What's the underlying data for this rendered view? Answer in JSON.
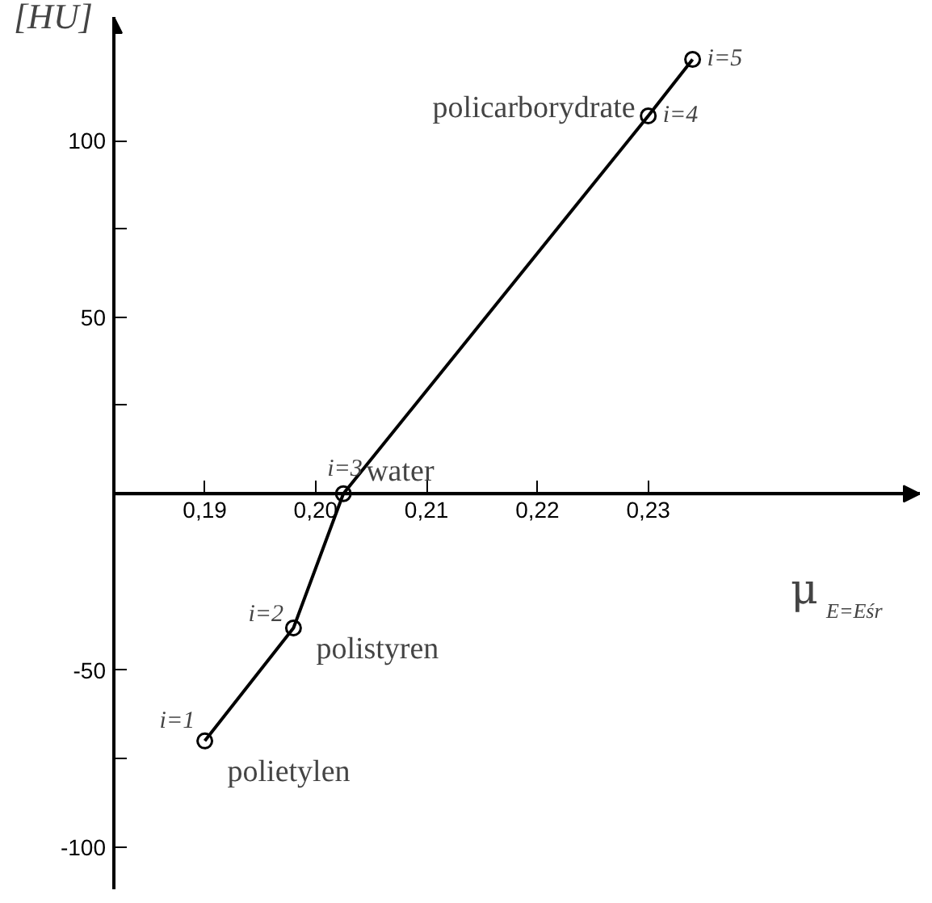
{
  "chart_data": {
    "type": "line",
    "xlabel": "μ$_{E=Eśr}$",
    "ylabel": "[HU]",
    "x": [
      0.19,
      0.198,
      0.2025,
      0.23,
      0.234
    ],
    "series": [
      {
        "color": "#000000",
        "values": [
          -70,
          -38,
          0,
          107,
          123
        ]
      }
    ],
    "marker": "circle",
    "line_style": "solid",
    "grid": false,
    "xlim": [
      0.1818,
      0.2545
    ],
    "ylim": [
      -112,
      135
    ],
    "xticks": [
      {
        "value": 0.19,
        "label": "0,19"
      },
      {
        "value": 0.2,
        "label": "0,20"
      },
      {
        "value": 0.21,
        "label": "0,21"
      },
      {
        "value": 0.22,
        "label": "0,22"
      },
      {
        "value": 0.23,
        "label": "0,23"
      }
    ],
    "yticks": [
      -100,
      {
        "value": -75,
        "label": null
      },
      -50,
      {
        "value": 25,
        "label": null
      },
      50,
      {
        "value": 75,
        "label": null
      },
      100
    ],
    "annotations": [
      {
        "text": "i=1",
        "x": 0.19,
        "y": -70
      },
      {
        "text": "polietylen",
        "x": 0.19,
        "y": -70
      },
      {
        "text": "i=2",
        "x": 0.198,
        "y": -38
      },
      {
        "text": "polistyren",
        "x": 0.198,
        "y": -38
      },
      {
        "text": "i=3",
        "x": 0.2025,
        "y": 0
      },
      {
        "text": "water",
        "x": 0.2025,
        "y": 0
      },
      {
        "text": "i=4",
        "x": 0.23,
        "y": 107
      },
      {
        "text": "policarborydrate",
        "x": 0.23,
        "y": 107
      },
      {
        "text": "i=5",
        "x": 0.234,
        "y": 123
      }
    ]
  }
}
